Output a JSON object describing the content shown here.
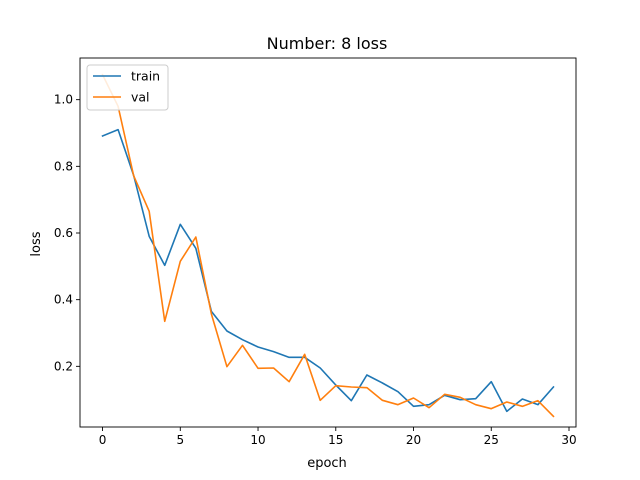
{
  "chart_data": {
    "type": "line",
    "title": "Number: 8 loss",
    "xlabel": "epoch",
    "ylabel": "loss",
    "xlim": [
      -1.45,
      30.45
    ],
    "ylim": [
      0.018,
      1.125
    ],
    "xticks": [
      0,
      5,
      10,
      15,
      20,
      25,
      30
    ],
    "yticks": [
      0.2,
      0.4,
      0.6,
      0.8,
      1.0
    ],
    "xtick_labels": [
      "0",
      "5",
      "10",
      "15",
      "20",
      "25",
      "30"
    ],
    "ytick_labels": [
      "0.2",
      "0.4",
      "0.6",
      "0.8",
      "1.0"
    ],
    "grid": false,
    "legend_position": "upper-left",
    "x": [
      0,
      1,
      2,
      3,
      4,
      5,
      6,
      7,
      8,
      9,
      10,
      11,
      12,
      13,
      14,
      15,
      16,
      17,
      18,
      19,
      20,
      21,
      22,
      23,
      24,
      25,
      26,
      27,
      28,
      29
    ],
    "series": [
      {
        "name": "train",
        "color": "#1f77b4",
        "values": [
          0.891,
          0.91,
          0.773,
          0.59,
          0.503,
          0.626,
          0.554,
          0.365,
          0.306,
          0.28,
          0.258,
          0.244,
          0.227,
          0.227,
          0.195,
          0.144,
          0.097,
          0.174,
          0.15,
          0.124,
          0.08,
          0.085,
          0.113,
          0.1,
          0.103,
          0.154,
          0.065,
          0.102,
          0.085,
          0.138
        ]
      },
      {
        "name": "val",
        "color": "#ff7f0e",
        "values": [
          1.075,
          0.98,
          0.772,
          0.665,
          0.335,
          0.515,
          0.588,
          0.357,
          0.199,
          0.263,
          0.194,
          0.195,
          0.154,
          0.236,
          0.098,
          0.142,
          0.138,
          0.136,
          0.098,
          0.085,
          0.105,
          0.076,
          0.116,
          0.107,
          0.085,
          0.073,
          0.093,
          0.08,
          0.097,
          0.05
        ]
      }
    ]
  }
}
